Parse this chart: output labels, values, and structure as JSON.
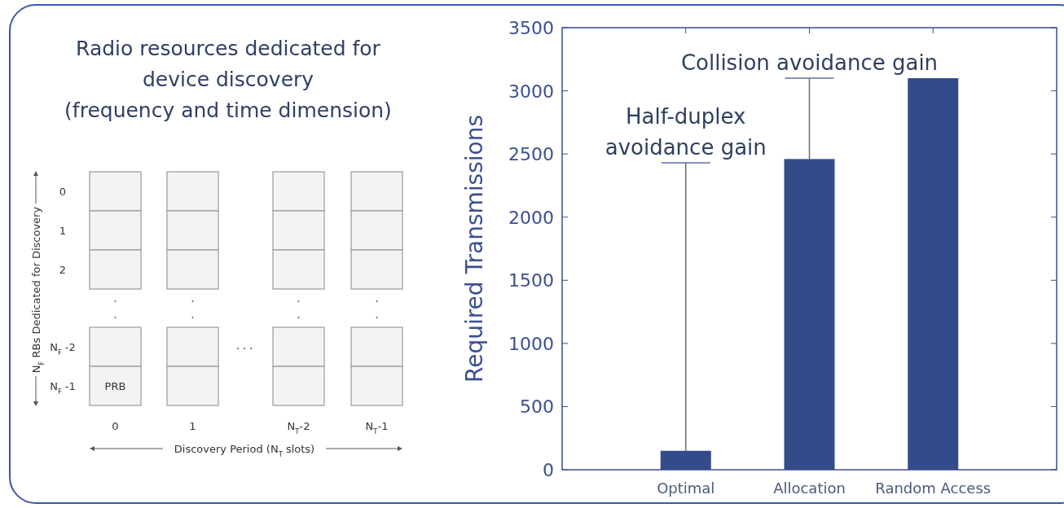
{
  "chart_data": [
    {
      "type": "other",
      "title": "Radio resources dedicated for\ndevice discovery\n(frequency and time dimension)",
      "categories": [
        "0",
        "1",
        "N$_{T}$-2",
        "N$_{T}$-1"
      ],
      "y_categories": [
        "0",
        "1",
        "2",
        "N$_{F}$ -2",
        "N$_{F}$ -1"
      ],
      "xlabel": "Discovery Period (N$_{T}$ slots)",
      "ylabel": "N$_{F}$ RBs Dedicated for Discovery",
      "annotations": [
        "PRB"
      ]
    },
    {
      "type": "bar",
      "categories": [
        "Optimal",
        "Allocation",
        "Random Access"
      ],
      "values": [
        150,
        2460,
        3100
      ],
      "errors": [
        [
          150,
          2430
        ],
        [
          2460,
          3100
        ],
        null
      ],
      "color": "#344b8a",
      "ylabel": "Required Transmissions",
      "ylim": [
        0,
        3500
      ],
      "yticks": [
        0,
        500,
        1000,
        1500,
        2000,
        2500,
        3000,
        3500
      ],
      "annotations": [
        "Half-duplex\navoidance gain",
        "Collision avoidance gain"
      ]
    }
  ]
}
